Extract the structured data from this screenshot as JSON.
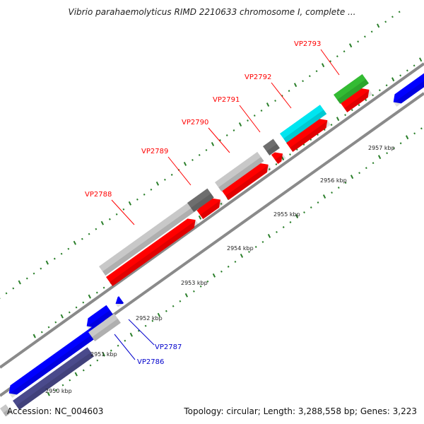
{
  "title": "Vibrio parahaemolyticus RIMD 2210633 chromosome I, complete ...",
  "footer": {
    "accession": "Accession: NC_004603",
    "summary": "Topology: circular; Length: 3,288,558 bp; Genes: 3,223"
  },
  "colors": {
    "forward": "#ff0000",
    "reverse": "#0000ff",
    "reverse_dark": "#4a4a8c",
    "gene_light": "#c8c8c8",
    "gene_dark": "#6e6e6e",
    "cyan": "#00e5f0",
    "green": "#33bb33",
    "tick": "#2a7f2a",
    "label_forward": "#ff0000",
    "label_reverse": "#0000cc"
  },
  "kbp_labels": [
    "2950 kbp",
    "2951 kbp",
    "2952 kbp",
    "2953 kbp",
    "2954 kbp",
    "2955 kbp",
    "2956 kbp",
    "2957 kbp"
  ],
  "gene_labels": [
    {
      "text": "VP2786",
      "strand": "reverse"
    },
    {
      "text": "VP2787",
      "strand": "reverse"
    },
    {
      "text": "VP2788",
      "strand": "forward"
    },
    {
      "text": "VP2789",
      "strand": "forward"
    },
    {
      "text": "VP2790",
      "strand": "forward"
    },
    {
      "text": "VP2791",
      "strand": "forward"
    },
    {
      "text": "VP2792",
      "strand": "forward"
    },
    {
      "text": "VP2793",
      "strand": "forward"
    }
  ]
}
